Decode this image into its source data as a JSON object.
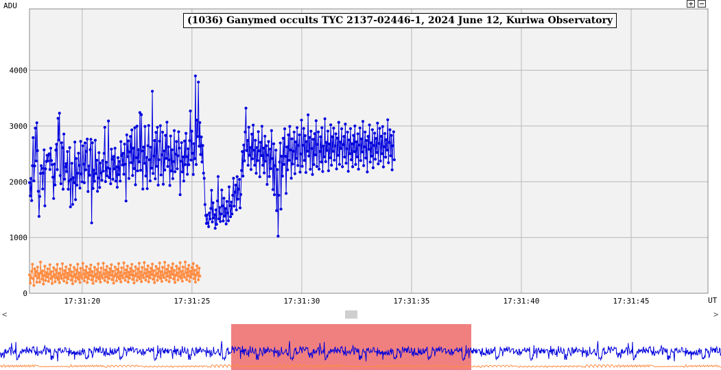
{
  "toolbar": {
    "zoom_in_label": "+",
    "zoom_out_label": "−"
  },
  "scrollbar": {
    "left_arrow": "<",
    "right_arrow": ">"
  },
  "chart_data": {
    "type": "line",
    "title": "(1036) Ganymed occults TYC 2137-02446-1, 2024 June 12, Kuriwa Observatory",
    "ylabel": "ADU",
    "xlabel": "UT",
    "x_ticks": [
      "17:31:20",
      "17:31:25",
      "17:31:30",
      "17:31:35",
      "17:31:40",
      "17:31:45"
    ],
    "x_tick_seconds": [
      20,
      25,
      30,
      35,
      40,
      45
    ],
    "y_ticks": [
      0,
      1000,
      2000,
      3000,
      4000
    ],
    "xlim_seconds": [
      17.6,
      48.5
    ],
    "ylim": [
      0,
      5100
    ],
    "grid": true,
    "series": [
      {
        "color": "#0000dd",
        "step_seconds": 0.0333,
        "values": [
          1985,
          1747,
          2059,
          1662,
          2287,
          2791,
          2017,
          2283,
          2962,
          2374,
          3058,
          2557,
          1829,
          1379,
          1737,
          2149,
          2288,
          2240,
          1872,
          2155,
          2572,
          1568,
          2231,
          2364,
          2474,
          2373,
          2478,
          2501,
          2219,
          2601,
          2380,
          2307,
          2082,
          1699,
          2316,
          1943,
          2567,
          2672,
          2218,
          3138,
          2749,
          3229,
          2111,
          1965,
          2700,
          2610,
          1867,
          2855,
          2046,
          2270,
          2325,
          2183,
          2542,
          1867,
          2014,
          2612,
          1550,
          2042,
          2330,
          1594,
          2073,
          1983,
          2711,
          1679,
          2417,
          1939,
          2153,
          2512,
          2293,
          1886,
          2723,
          2143,
          1999,
          2643,
          2315,
          1982,
          2696,
          2215,
          2545,
          2765,
          1825,
          2281,
          2119,
          2574,
          2761,
          1262,
          2699,
          1880,
          2208,
          2009,
          2744,
          2147,
          2385,
          1829,
          2069,
          2522,
          1897,
          2335,
          2160,
          2028,
          2378,
          2192,
          2510,
          2975,
          2003,
          2350,
          2107,
          2251,
          3089,
          2076,
          2231,
          1964,
          2584,
          2403,
          2045,
          2452,
          2232,
          2600,
          2012,
          2267,
          1901,
          2432,
          2129,
          2363,
          2012,
          2719,
          2471,
          2303,
          2509,
          2135,
          2674,
          2313,
          1655,
          2841,
          2451,
          2733,
          2059,
          2536,
          2812,
          2344,
          2930,
          2113,
          2600,
          2237,
          2968,
          1947,
          2432,
          2997,
          2196,
          2575,
          2358,
          3240,
          2206,
          3202,
          2553,
          1869,
          2621,
          2332,
          2993,
          2103,
          2434,
          1877,
          2647,
          3009,
          2395,
          2016,
          2619,
          2244,
          3623,
          2148,
          2460,
          2739,
          2053,
          2886,
          2277,
          2976,
          1941,
          2395,
          2728,
          3005,
          2122,
          2483,
          2889,
          1955,
          2552,
          2211,
          2832,
          2419,
          3068,
          2275,
          2625,
          2393,
          1934,
          2820,
          2195,
          2573,
          2057,
          2362,
          2918,
          2180,
          2495,
          2721,
          2233,
          2466,
          2897,
          2604,
          1768,
          2368,
          2701,
          2177,
          2446,
          2013,
          2731,
          2307,
          2868,
          2451,
          2133,
          2590,
          2306,
          2737,
          3269,
          2389,
          2907,
          2511,
          2131,
          2683,
          2415,
          3898,
          2309,
          3104,
          2812,
          3788,
          2637,
          3061,
          2488,
          2803,
          2355,
          2650,
          2154,
          2061,
          1591,
          1395,
          1252,
          1402,
          1258,
          1195,
          1439,
          1333,
          1521,
          1847,
          1279,
          1622,
          1350,
          1408,
          1165,
          1496,
          1236,
          1657,
          2093,
          1335,
          1538,
          1287,
          1423,
          1852,
          1567,
          1296,
          1703,
          1384,
          1518,
          1242,
          1647,
          1441,
          1302,
          1908,
          1573,
          1373,
          1634,
          1422,
          1757,
          2062,
          1563,
          1813,
          1941,
          1496,
          2092,
          1688,
          1867,
          2042,
          1531,
          1771,
          2201,
          2542,
          2101,
          2658,
          2377,
          2893,
          3319,
          2561,
          2741,
          2296,
          2978,
          2475,
          2613,
          2219,
          2853,
          2411,
          3016,
          2566,
          2296,
          2743,
          2152,
          2614,
          2381,
          2898,
          2555,
          2089,
          2707,
          2470,
          2995,
          2296,
          2603,
          2158,
          2815,
          2368,
          2646,
          1953,
          2478,
          2721,
          2094,
          2584,
          2236,
          2917,
          2416,
          1860,
          2680,
          1767,
          2287,
          2566,
          1482,
          2218,
          1025,
          1757,
          2353,
          2695,
          1509,
          2456,
          2101,
          2779,
          2310,
          2949,
          2455,
          1791,
          2624,
          2213,
          2841,
          2384,
          2992,
          2570,
          2063,
          2770,
          2318,
          2547,
          2890,
          2145,
          2715,
          2419,
          2970,
          2292,
          2649,
          2841,
          2173,
          2500,
          3105,
          2279,
          2654,
          2956,
          2383,
          2827,
          2166,
          2719,
          2549,
          3200,
          2462,
          2795,
          2224,
          2907,
          2598,
          2131,
          2760,
          2308,
          2862,
          2482,
          3094,
          2274,
          2671,
          2893,
          2227,
          2543,
          2805,
          2354,
          2969,
          2184,
          2639,
          2447,
          3129,
          2361,
          2705,
          2562,
          2908,
          2197,
          2676,
          2431,
          3021,
          2297,
          2807,
          2546,
          2962,
          2386,
          2643,
          2860,
          2230,
          2782,
          2475,
          3065,
          2312,
          2712,
          2598,
          2951,
          2268,
          2665,
          2812,
          2443,
          3034,
          2332,
          2590,
          2890,
          2187,
          2749,
          2503,
          2953,
          2395,
          2680,
          2269,
          2832,
          2541,
          3000,
          2310,
          2715,
          2447,
          2860,
          2226,
          2658,
          2964,
          2381,
          2767,
          2535,
          3082,
          2290,
          2628,
          2892,
          2426,
          2741,
          2177,
          2813,
          2583,
          3018,
          2353,
          2697,
          2459,
          2934,
          2250,
          2651,
          2871,
          2404,
          2776,
          2525,
          3052,
          2321,
          2688,
          2958,
          2372,
          2814,
          2503,
          2990,
          2266,
          2629,
          2864,
          2441,
          2755,
          2570,
          3111,
          2341,
          2706,
          2932,
          2466,
          2831,
          2213,
          2646,
          2897,
          2394
        ]
      },
      {
        "color": "#ff8c42",
        "step_seconds": 0.0333,
        "values": [
          330,
          182,
          281,
          392,
          520,
          262,
          141,
          439,
          315,
          396,
          198,
          469,
          277,
          352,
          201,
          559,
          365,
          252,
          402,
          166,
          318,
          485,
          229,
          371,
          291,
          437,
          214,
          346,
          512,
          263,
          387,
          177,
          295,
          458,
          331,
          207,
          421,
          283,
          517,
          246,
          358,
          192,
          439,
          309,
          264,
          531,
          343,
          221,
          406,
          287,
          473,
          189,
          361,
          259,
          432,
          318,
          505,
          236,
          384,
          171,
          297,
          462,
          337,
          215,
          419,
          280,
          521,
          249,
          366,
          194,
          447,
          312,
          268,
          536,
          348,
          223,
          412,
          290,
          478,
          192,
          367,
          263,
          437,
          321,
          507,
          240,
          388,
          178,
          302,
          466,
          340,
          219,
          425,
          285,
          528,
          253,
          371,
          200,
          452,
          316,
          270,
          540,
          352,
          226,
          417,
          293,
          482,
          197,
          373,
          267,
          441,
          326,
          512,
          244,
          393,
          182,
          307,
          471,
          345,
          224,
          430,
          289,
          532,
          257,
          376,
          204,
          457,
          320,
          274,
          546,
          357,
          231,
          421,
          297,
          487,
          201,
          378,
          271,
          446,
          330,
          518,
          248,
          399,
          186,
          312,
          476,
          349,
          228,
          435,
          294,
          538,
          261,
          381,
          209,
          462,
          325,
          278,
          551,
          362,
          235,
          426,
          301,
          492,
          205,
          384,
          276,
          451,
          334,
          523,
          252,
          404,
          190,
          316,
          481,
          354,
          232,
          440,
          298,
          543,
          265,
          386,
          213,
          466,
          329,
          283,
          556,
          367,
          239,
          431,
          305,
          497,
          209,
          389,
          280,
          456,
          339,
          528,
          256,
          408,
          195,
          321,
          486,
          359,
          237,
          445,
          303,
          548,
          270,
          391,
          218,
          471,
          334,
          287,
          560,
          372,
          244,
          436,
          310,
          502,
          214,
          394,
          285,
          461,
          343,
          533,
          261,
          413,
          199,
          326,
          491,
          364,
          241,
          450,
          307
        ]
      }
    ]
  }
}
